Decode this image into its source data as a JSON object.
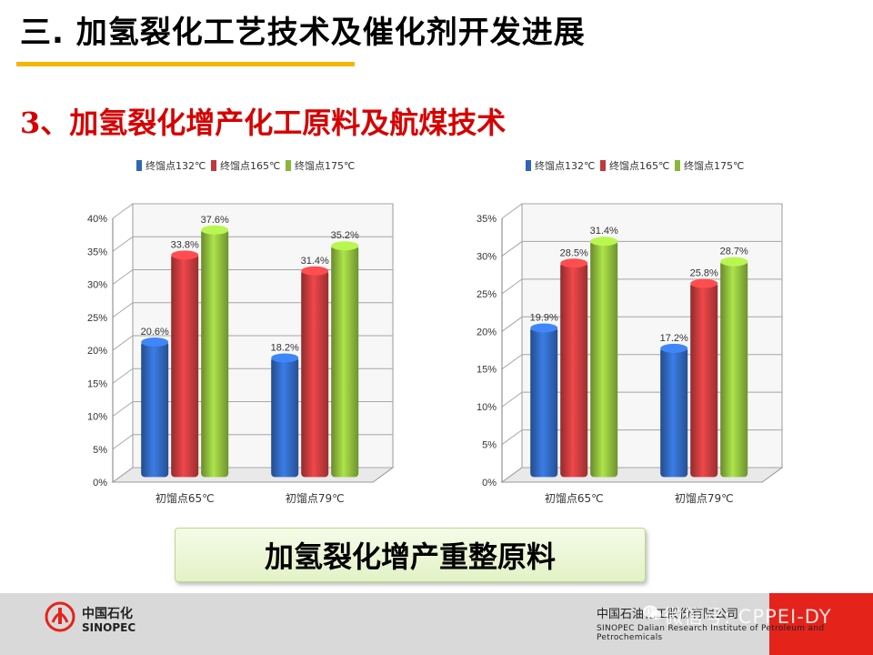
{
  "header": {
    "title": "三. 加氢裂化工艺技术及催化剂开发进展"
  },
  "section": {
    "subtitle": "3、加氢裂化增产化工原料及航煤技术"
  },
  "chart_data": [
    {
      "type": "bar",
      "categories": [
        "初馏点65℃",
        "初馏点79℃"
      ],
      "series": [
        {
          "name": "终馏点132℃",
          "color": "#2f64b8",
          "values": [
            20.6,
            18.2
          ]
        },
        {
          "name": "终馏点165℃",
          "color": "#c0393b",
          "values": [
            33.8,
            31.4
          ]
        },
        {
          "name": "终馏点175℃",
          "color": "#8ab63b",
          "values": [
            37.6,
            35.2
          ]
        }
      ],
      "ylim": [
        0,
        40
      ],
      "yticks": [
        "0%",
        "5%",
        "10%",
        "15%",
        "20%",
        "25%",
        "30%",
        "35%",
        "40%"
      ],
      "data_labels": [
        [
          "20.6%",
          "18.2%"
        ],
        [
          "33.8%",
          "31.4%"
        ],
        [
          "37.6%",
          "35.2%"
        ]
      ],
      "legend": "top",
      "grid": true
    },
    {
      "type": "bar",
      "categories": [
        "初馏点65℃",
        "初馏点79℃"
      ],
      "series": [
        {
          "name": "终馏点132℃",
          "color": "#2f64b8",
          "values": [
            19.9,
            17.2
          ]
        },
        {
          "name": "终馏点165℃",
          "color": "#c0393b",
          "values": [
            28.5,
            25.8
          ]
        },
        {
          "name": "终馏点175℃",
          "color": "#8ab63b",
          "values": [
            31.4,
            28.7
          ]
        }
      ],
      "ylim": [
        0,
        35
      ],
      "yticks": [
        "0%",
        "5%",
        "10%",
        "15%",
        "20%",
        "25%",
        "30%",
        "35%"
      ],
      "data_labels": [
        [
          "19.9%",
          "17.2%"
        ],
        [
          "28.5%",
          "25.8%"
        ],
        [
          "31.4%",
          "28.7%"
        ]
      ],
      "legend": "top",
      "grid": true
    }
  ],
  "caption": {
    "text": "加氢裂化增产重整原料"
  },
  "footer": {
    "logo_cn": "中国石化",
    "logo_en": "SINOPEC",
    "logo_icon": "sinopec-logo-icon",
    "institute_cn": "中国石油化工股份有限公司",
    "institute_en": "SINOPEC Dalian Research Institute of Petroleum and Petrochemicals",
    "watermark": "微信号: CPPEI-DY",
    "watermark_icon": "wechat-icon"
  }
}
